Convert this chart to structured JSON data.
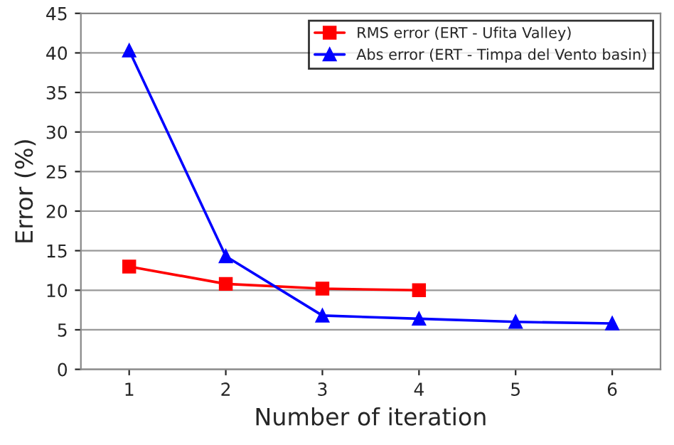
{
  "chart_data": {
    "type": "line",
    "xlabel": "Number of iteration",
    "ylabel": "Error (%)",
    "xlim": [
      0.5,
      6.5
    ],
    "xticks": [
      1,
      2,
      3,
      4,
      5,
      6
    ],
    "ylim": [
      0,
      45
    ],
    "yticks": [
      0,
      5,
      10,
      15,
      20,
      25,
      30,
      35,
      40,
      45
    ],
    "grid": "y",
    "legend": "top right",
    "series": [
      {
        "name": "RMS error (ERT - Ufita Valley)",
        "color": "#ff0000",
        "marker": "square",
        "x": [
          1,
          2,
          3,
          4
        ],
        "values": [
          13,
          10.8,
          10.2,
          10
        ]
      },
      {
        "name": "Abs error (ERT - Timpa del Vento basin)",
        "color": "#0000ff",
        "marker": "triangle",
        "x": [
          1,
          2,
          3,
          4,
          5,
          6
        ],
        "values": [
          40.3,
          14.3,
          6.8,
          6.4,
          6,
          5.8
        ]
      }
    ]
  }
}
